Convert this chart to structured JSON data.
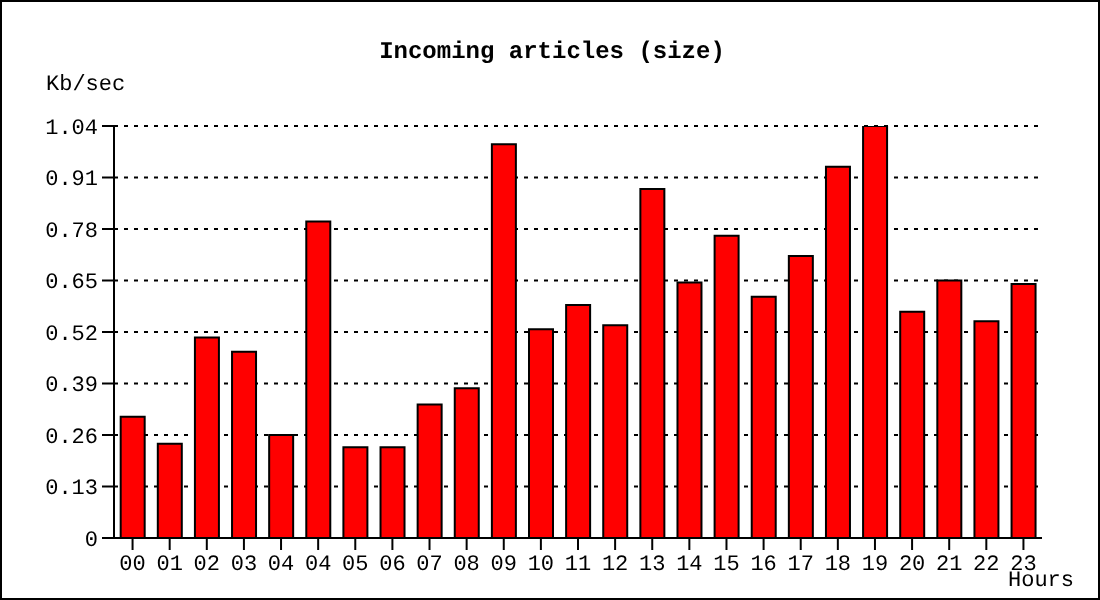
{
  "chart_data": {
    "type": "bar",
    "title": "Incoming articles (size)",
    "ylabel": "Kb/sec",
    "xlabel": "Hours",
    "categories": [
      "00",
      "01",
      "02",
      "03",
      "04",
      "04",
      "05",
      "06",
      "07",
      "08",
      "09",
      "10",
      "11",
      "12",
      "13",
      "14",
      "15",
      "16",
      "17",
      "18",
      "19",
      "20",
      "21",
      "22",
      "23"
    ],
    "values": [
      0.306,
      0.238,
      0.506,
      0.47,
      0.26,
      0.799,
      0.229,
      0.229,
      0.337,
      0.378,
      0.994,
      0.527,
      0.588,
      0.537,
      0.881,
      0.645,
      0.763,
      0.609,
      0.712,
      0.937,
      1.04,
      0.571,
      0.65,
      0.547,
      0.641
    ],
    "color": "#ff0000",
    "ylim": [
      0,
      1.04
    ],
    "yticks": [
      0,
      0.13,
      0.26,
      0.39,
      0.52,
      0.65,
      0.78,
      0.91,
      1.04
    ],
    "grid": "y"
  }
}
